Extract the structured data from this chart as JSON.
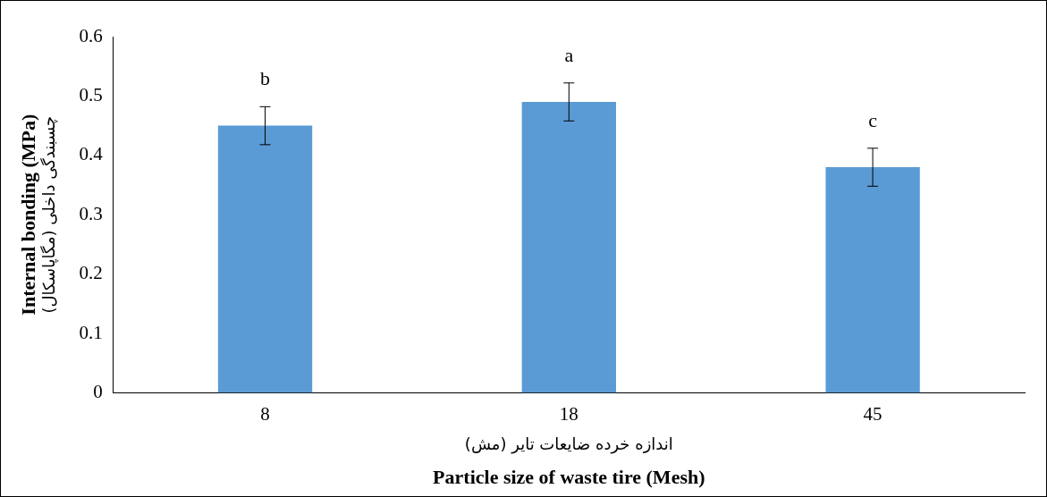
{
  "chart_data": {
    "type": "bar",
    "xlabel": "Particle size of waste tire (Mesh)",
    "ylabel": "Internal bonding (MPa)",
    "categories": [
      "8",
      "18",
      "45"
    ],
    "series": [
      {
        "color": "#5b9bd5",
        "values": [
          0.45,
          0.49,
          0.38
        ],
        "errors": [
          0.032,
          0.032,
          0.032
        ]
      }
    ],
    "ylim": [
      0,
      0.6
    ],
    "yticks": [
      0,
      0.1,
      0.2,
      0.3,
      0.4,
      0.5,
      0.6
    ],
    "grid": false,
    "legend": false,
    "annotations": [
      "b",
      "a",
      "c",
      "اندازه خرده ضایعات تایر (مش)",
      "چسبندگی داخلی (مگاپاسکال)"
    ]
  }
}
